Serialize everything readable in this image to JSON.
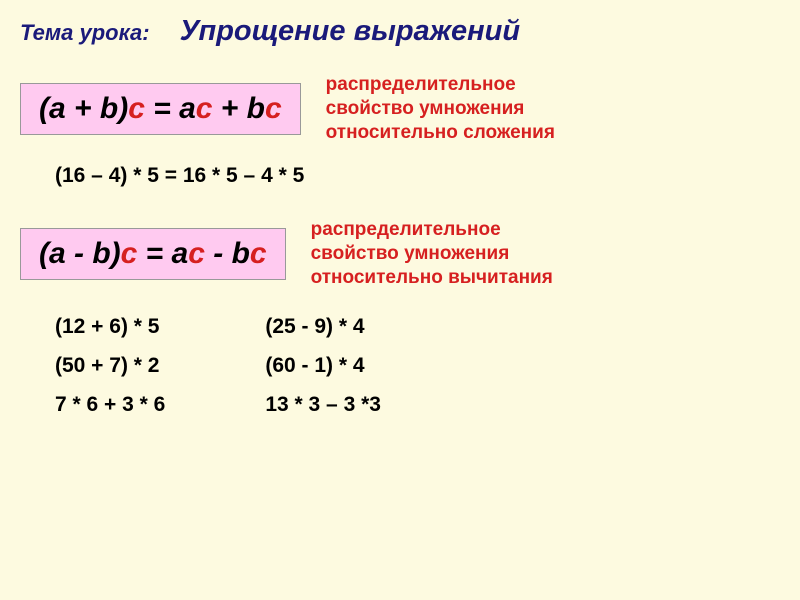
{
  "header": {
    "label": "Тема урока:",
    "title": "Упрощение выражений"
  },
  "formula1": {
    "parts": {
      "p1": "(a + b)",
      "p2": "c",
      "p3": " = a",
      "p4": "с",
      "p5": " + b",
      "p6": "с"
    },
    "desc": {
      "l1": "распределительное",
      "l2": "свойство умножения",
      "l3": "относительно сложения"
    },
    "bg": "#ffcaf0",
    "red": "#d62020"
  },
  "example1": {
    "left": "(16 – 4) * 5",
    "eq": "   =   ",
    "right": "16 * 5 – 4 * 5"
  },
  "formula2": {
    "parts": {
      "p1": "(a - b)",
      "p2": "c",
      "p3": " = a",
      "p4": "с",
      "p5": " - b",
      "p6": "с"
    },
    "desc": {
      "l1": "распределительное",
      "l2": "свойство умножения",
      "l3": "относительно вычитания"
    }
  },
  "practice": {
    "col1": {
      "r1": "(12 + 6) * 5",
      "r2": "(50 + 7) * 2",
      "r3": "7 * 6 + 3 * 6"
    },
    "col2": {
      "r1": "(25 - 9) * 4",
      "r2": "(60 - 1) * 4",
      "r3": "13 * 3 – 3 *3"
    }
  },
  "colors": {
    "page_bg": "#fdfae0",
    "heading": "#1a1a7a",
    "formula_bg": "#ffcaf0",
    "accent_red": "#d62020",
    "text": "#000000"
  },
  "fonts": {
    "title_pt": 29,
    "label_pt": 22,
    "formula_pt": 30,
    "desc_pt": 19,
    "body_pt": 21
  }
}
